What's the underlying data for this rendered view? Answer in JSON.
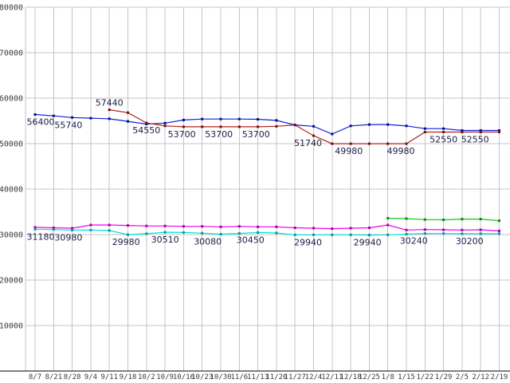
{
  "chart_data": {
    "type": "line",
    "title": "",
    "x_labels": [
      "8/7",
      "8/21",
      "8/28",
      "9/4",
      "9/11",
      "9/18",
      "10/2",
      "10/9",
      "10/16",
      "10/23",
      "10/30",
      "11/6",
      "11/13",
      "11/20",
      "11/27",
      "12/4",
      "12/11",
      "12/18",
      "12/25",
      "1/8",
      "1/15",
      "1/22",
      "1/29",
      "2/5",
      "2/12",
      "2/19"
    ],
    "ylim": [
      0,
      80000
    ],
    "y_ticks": [
      10000,
      20000,
      30000,
      40000,
      50000,
      60000,
      70000,
      80000
    ],
    "grid": true,
    "legend": "none",
    "colors": {
      "background": "#ffffff",
      "grid": "#c4c4c4",
      "axis": "#000000",
      "tick_label": "#3a3a3a",
      "annotation": "#1c1c46"
    },
    "series": [
      {
        "name": "series-blue",
        "color": "#1122dd",
        "marker_color": "#0b0b88",
        "values": [
          56400,
          56100,
          55740,
          55600,
          55450,
          54900,
          54300,
          54500,
          55200,
          55400,
          55400,
          55400,
          55350,
          55100,
          54100,
          53800,
          52100,
          53900,
          54200,
          54200,
          53900,
          53300,
          53300,
          52900,
          52900,
          52900
        ]
      },
      {
        "name": "series-red",
        "color": "#b22222",
        "marker_color": "#6e1111",
        "values": [
          null,
          null,
          null,
          null,
          57440,
          56800,
          54550,
          53900,
          53700,
          53700,
          53700,
          53700,
          53700,
          53800,
          54100,
          51740,
          49980,
          49980,
          49980,
          49980,
          49980,
          52550,
          52550,
          52550,
          52550,
          52550
        ]
      },
      {
        "name": "series-magenta",
        "color": "#ee00ee",
        "marker_color": "#a800a8",
        "values": [
          31600,
          31500,
          31400,
          32100,
          32100,
          32000,
          31900,
          31900,
          31800,
          31800,
          31700,
          31800,
          31700,
          31700,
          31500,
          31400,
          31300,
          31400,
          31500,
          32100,
          31000,
          31100,
          31050,
          31000,
          31050,
          30800
        ]
      },
      {
        "name": "series-cyan",
        "color": "#00dede",
        "marker_color": "#009c9c",
        "values": [
          31180,
          31100,
          30980,
          31000,
          30900,
          29980,
          30200,
          30510,
          30450,
          30300,
          30080,
          30250,
          30450,
          30350,
          29940,
          29950,
          29940,
          29940,
          29900,
          29940,
          30100,
          30240,
          30220,
          30200,
          30200,
          30200
        ]
      },
      {
        "name": "series-green",
        "color": "#17c517",
        "marker_color": "#0d8a0d",
        "values": [
          null,
          null,
          null,
          null,
          null,
          null,
          null,
          null,
          null,
          null,
          null,
          null,
          null,
          null,
          null,
          null,
          null,
          null,
          null,
          33600,
          33500,
          33300,
          33250,
          33400,
          33400,
          33050
        ]
      }
    ],
    "annotations": [
      {
        "text": "56400",
        "xi": 0.3,
        "value": 56400,
        "pos": "below"
      },
      {
        "text": "55740",
        "xi": 1.8,
        "value": 55740,
        "pos": "below"
      },
      {
        "text": "57440",
        "xi": 4.0,
        "value": 57440,
        "pos": "above"
      },
      {
        "text": "54550",
        "xi": 6.0,
        "value": 54550,
        "pos": "below"
      },
      {
        "text": "53700",
        "xi": 7.9,
        "value": 53700,
        "pos": "below"
      },
      {
        "text": "53700",
        "xi": 9.9,
        "value": 53700,
        "pos": "below"
      },
      {
        "text": "53700",
        "xi": 11.9,
        "value": 53700,
        "pos": "below"
      },
      {
        "text": "51740",
        "xi": 14.7,
        "value": 51740,
        "pos": "below"
      },
      {
        "text": "49980",
        "xi": 16.9,
        "value": 49980,
        "pos": "below"
      },
      {
        "text": "49980",
        "xi": 19.7,
        "value": 49980,
        "pos": "below"
      },
      {
        "text": "52550",
        "xi": 22.0,
        "value": 52550,
        "pos": "below"
      },
      {
        "text": "52550",
        "xi": 23.7,
        "value": 52550,
        "pos": "below"
      },
      {
        "text": "31180",
        "xi": 0.3,
        "value": 31180,
        "pos": "below"
      },
      {
        "text": "30980",
        "xi": 1.8,
        "value": 30980,
        "pos": "below"
      },
      {
        "text": "29980",
        "xi": 4.9,
        "value": 29980,
        "pos": "below"
      },
      {
        "text": "30510",
        "xi": 7.0,
        "value": 30510,
        "pos": "below"
      },
      {
        "text": "30080",
        "xi": 9.3,
        "value": 30080,
        "pos": "below"
      },
      {
        "text": "30450",
        "xi": 11.6,
        "value": 30450,
        "pos": "below"
      },
      {
        "text": "29940",
        "xi": 14.7,
        "value": 29940,
        "pos": "below"
      },
      {
        "text": "29940",
        "xi": 17.9,
        "value": 29940,
        "pos": "below"
      },
      {
        "text": "30240",
        "xi": 20.4,
        "value": 30240,
        "pos": "below"
      },
      {
        "text": "30200",
        "xi": 23.4,
        "value": 30200,
        "pos": "below"
      }
    ]
  }
}
